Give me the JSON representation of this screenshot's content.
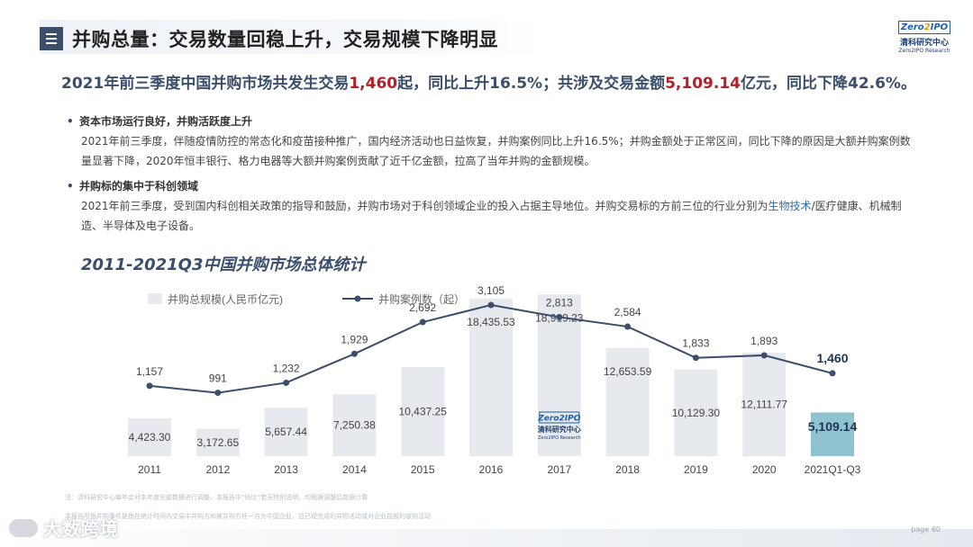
{
  "header": {
    "title": "并购总量：交易数量回稳上升，交易规模下降明显",
    "menu_icon": "menu-icon"
  },
  "logo": {
    "zero": "Zero",
    "ipo": "IPO",
    "cn": "清科研究中心",
    "en": "Zero2IPO Research"
  },
  "headline": {
    "part1": "2021年前三季度中国并购市场共发生交易",
    "count": "1,460",
    "part2": "起，同比上升16.5%；共涉及交易金额",
    "amount": "5,109.14",
    "part3": "亿元，同比下降42.6%。"
  },
  "bullets": [
    {
      "title": "资本市场运行良好，并购活跃度上升",
      "body": "2021年前三季度，伴随疫情防控的常态化和疫苗接种推广，国内经济活动也日益恢复，并购案例同比上升16.5%；并购金额处于正常区间，同比下降的原因是大额并购案例数量显著下降，2020年恒丰银行、格力电器等大额并购案例贡献了近千亿金额，拉高了当年并购的金额规模。"
    },
    {
      "title": "并购标的集中于科创领域",
      "body_pre": "2021年前三季度，受到国内科创相关政策的指导和鼓励，并购市场对于科创领域企业的投入占据主导地位。并购交易标的方前三位的行业分别为",
      "body_highlight": "生物技术",
      "body_post": "/医疗健康、机械制造、半导体及电子设备。"
    }
  ],
  "chart_title": "2011-2021Q3中国并购市场总体统计",
  "chart_data": {
    "type": "bar",
    "title": "2011-2021Q3中国并购市场总体统计",
    "categories": [
      "2011",
      "2012",
      "2013",
      "2014",
      "2015",
      "2016",
      "2017",
      "2018",
      "2019",
      "2020",
      "2021Q1-Q3"
    ],
    "series": [
      {
        "name": "并购总规模(人民币亿元)",
        "type": "bar",
        "values": [
          4423.3,
          3172.65,
          5657.44,
          7250.38,
          10437.25,
          18435.53,
          18919.23,
          12653.59,
          10129.3,
          12111.77,
          5109.14
        ],
        "labels": [
          "4,423.30",
          "3,172.65",
          "5,657.44",
          "7,250.38",
          "10,437.25",
          "18,435.53",
          "18,919.23",
          "12,653.59",
          "10,129.30",
          "12,111.77",
          "5,109.14"
        ]
      },
      {
        "name": "并购案例数（起）",
        "type": "line",
        "values": [
          1157,
          991,
          1232,
          1929,
          2692,
          3105,
          2813,
          2584,
          1833,
          1893,
          1460
        ],
        "labels": [
          "1,157",
          "991",
          "1,232",
          "1,929",
          "2,692",
          "3,105",
          "2,813",
          "2,584",
          "1,833",
          "1,893",
          "1,460"
        ]
      }
    ],
    "legend_position": "top-left",
    "grid": false,
    "colors": {
      "bar": "#e6e9ee",
      "bar_highlight": "#8fc3cf",
      "line": "#3b4e6b",
      "bar_label": "#444444",
      "highlight_label": "#1f3550"
    },
    "bar_ylim": [
      0,
      20000
    ],
    "line_ylim": [
      700,
      3300
    ]
  },
  "notes": {
    "note1": "注：清科研究中心每年会对本年度全部数据进行调整，本报告中“同比”若无特别说明，均根据调整后数据计算",
    "note2": "本报告所指并购事件是指在统计时间内交易中并购方和被并购方任一方为中国企业，且已经完成的并购活动或对企业控股的收购活动"
  },
  "watermark": "大数跨境",
  "footer": {
    "page_label": "page",
    "page_number": "60"
  }
}
